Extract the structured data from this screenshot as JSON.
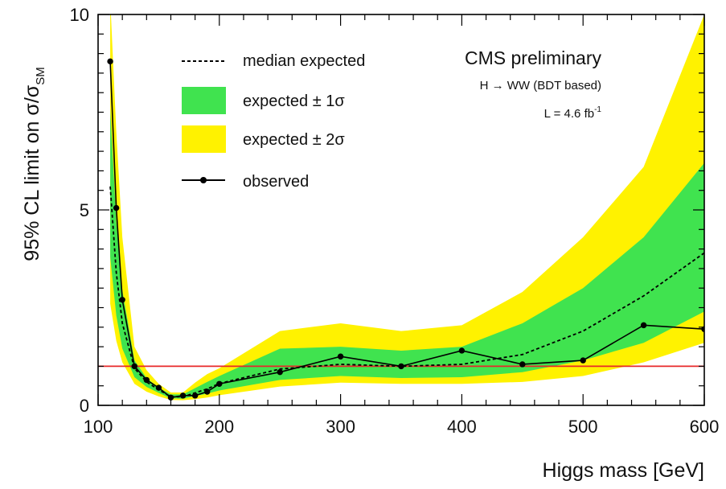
{
  "chart_data": {
    "type": "line",
    "title": "CMS preliminary",
    "subtitle": "H → WW (BDT based)",
    "lumi_text": "L = 4.6 fb",
    "lumi_superscript": "-1",
    "xlabel": "Higgs mass [GeV]",
    "ylabel": {
      "main": "95% CL limit on σ/σ",
      "subscript": "SM"
    },
    "xlim": [
      100,
      600
    ],
    "ylim": [
      0,
      10
    ],
    "x_ticks": [
      100,
      200,
      300,
      400,
      500,
      600
    ],
    "x_tick_labels": [
      "100",
      "200",
      "300",
      "400",
      "500",
      "600"
    ],
    "y_ticks": [
      0,
      5,
      10
    ],
    "y_tick_labels": [
      "0",
      "5",
      "10"
    ],
    "reference_line": {
      "y": 1,
      "color": "#e8282a"
    },
    "legend": {
      "placement": "top-left",
      "items": [
        {
          "label": "median expected",
          "style": "dashed",
          "color": "#000000"
        },
        {
          "label": "expected ± 1σ",
          "style": "band",
          "color": "#40e34f"
        },
        {
          "label": "expected ± 2σ",
          "style": "band",
          "color": "#fff200"
        },
        {
          "label": "observed",
          "style": "line-marker",
          "color": "#000000"
        }
      ]
    },
    "colors": {
      "band_2sigma": "#fff200",
      "band_1sigma": "#40e34f",
      "expected": "#000000",
      "observed": "#000000",
      "frame": "#000000"
    },
    "x": [
      110,
      115,
      120,
      130,
      140,
      150,
      160,
      170,
      180,
      190,
      200,
      250,
      300,
      350,
      400,
      450,
      500,
      550,
      600
    ],
    "series": [
      {
        "name": "expected ± 2σ",
        "kind": "band",
        "lower": [
          2.6,
          1.65,
          1.1,
          0.55,
          0.35,
          0.23,
          0.14,
          0.13,
          0.16,
          0.2,
          0.26,
          0.48,
          0.58,
          0.55,
          0.55,
          0.6,
          0.75,
          1.1,
          1.6
        ],
        "upper": [
          10.4,
          7.0,
          4.3,
          1.5,
          0.9,
          0.55,
          0.33,
          0.33,
          0.58,
          0.8,
          0.95,
          1.9,
          2.1,
          1.9,
          2.05,
          2.9,
          4.3,
          6.1,
          10.0
        ]
      },
      {
        "name": "expected ± 1σ",
        "kind": "band",
        "lower": [
          3.8,
          2.3,
          1.45,
          0.72,
          0.47,
          0.32,
          0.18,
          0.17,
          0.24,
          0.3,
          0.38,
          0.65,
          0.75,
          0.7,
          0.72,
          0.85,
          1.15,
          1.6,
          2.4
        ],
        "upper": [
          7.6,
          4.7,
          2.95,
          1.15,
          0.7,
          0.45,
          0.28,
          0.28,
          0.44,
          0.6,
          0.75,
          1.45,
          1.5,
          1.4,
          1.5,
          2.1,
          3.0,
          4.3,
          6.2
        ]
      },
      {
        "name": "median expected",
        "kind": "line",
        "values": [
          5.6,
          3.4,
          2.1,
          0.95,
          0.6,
          0.4,
          0.22,
          0.22,
          0.32,
          0.42,
          0.56,
          0.93,
          1.05,
          1.0,
          1.05,
          1.3,
          1.9,
          2.8,
          3.9
        ]
      },
      {
        "name": "observed",
        "kind": "line-marker",
        "values": [
          8.8,
          5.05,
          2.7,
          1.0,
          0.65,
          0.45,
          0.2,
          0.25,
          0.25,
          0.35,
          0.55,
          0.85,
          1.25,
          1.0,
          1.4,
          1.05,
          1.15,
          2.05,
          1.95
        ]
      }
    ]
  }
}
